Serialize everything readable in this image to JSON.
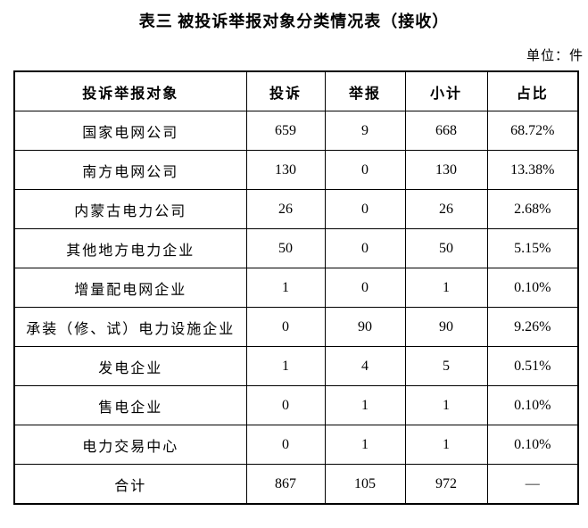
{
  "title": "表三 被投诉举报对象分类情况表（接收）",
  "unit_label": "单位：件",
  "table": {
    "headers": [
      "投诉举报对象",
      "投诉",
      "举报",
      "小计",
      "占比"
    ],
    "rows": [
      [
        "国家电网公司",
        "659",
        "9",
        "668",
        "68.72%"
      ],
      [
        "南方电网公司",
        "130",
        "0",
        "130",
        "13.38%"
      ],
      [
        "内蒙古电力公司",
        "26",
        "0",
        "26",
        "2.68%"
      ],
      [
        "其他地方电力企业",
        "50",
        "0",
        "50",
        "5.15%"
      ],
      [
        "增量配电网企业",
        "1",
        "0",
        "1",
        "0.10%"
      ],
      [
        "承装（修、试）电力设施企业",
        "0",
        "90",
        "90",
        "9.26%"
      ],
      [
        "发电企业",
        "1",
        "4",
        "5",
        "0.51%"
      ],
      [
        "售电企业",
        "0",
        "1",
        "1",
        "0.10%"
      ],
      [
        "电力交易中心",
        "0",
        "1",
        "1",
        "0.10%"
      ],
      [
        "合计",
        "867",
        "105",
        "972",
        "—"
      ]
    ]
  }
}
